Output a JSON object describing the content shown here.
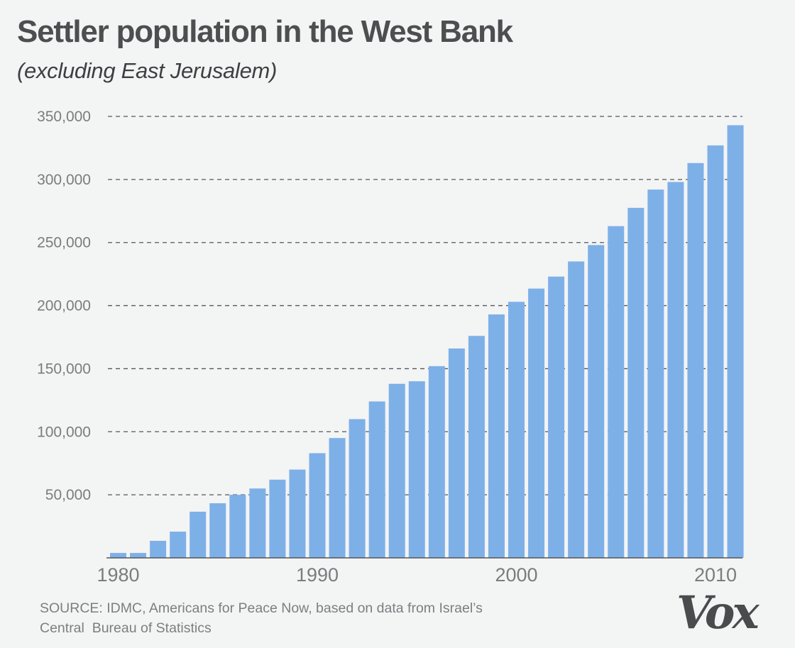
{
  "header": {
    "title": "Settler population in the West Bank",
    "subtitle": "(excluding East Jerusalem)"
  },
  "footer": {
    "source_line1": "SOURCE: IDMC, Americans for Peace Now, based on data from Israel’s",
    "source_line2": "Central  Bureau of Statistics",
    "logo_text": "Vox"
  },
  "colors": {
    "bar": "#7eb0e8",
    "grid": "#55565a",
    "background": "#f3f4f4"
  },
  "chart_data": {
    "type": "bar",
    "title": "Settler population in the West Bank",
    "subtitle": "(excluding East Jerusalem)",
    "xlabel": "",
    "ylabel": "",
    "categories": [
      1980,
      1981,
      1982,
      1983,
      1984,
      1985,
      1986,
      1987,
      1988,
      1989,
      1990,
      1991,
      1992,
      1993,
      1994,
      1995,
      1996,
      1997,
      1998,
      1999,
      2000,
      2001,
      2002,
      2003,
      2004,
      2005,
      2006,
      2007,
      2008,
      2009,
      2010,
      2011
    ],
    "values": [
      3900,
      3900,
      13500,
      20800,
      36600,
      43300,
      50000,
      55000,
      62000,
      70000,
      83000,
      95000,
      110000,
      124000,
      138000,
      140000,
      152000,
      166000,
      176000,
      193000,
      203000,
      213500,
      223000,
      235000,
      248000,
      263000,
      277500,
      292000,
      298000,
      313000,
      327000,
      343000
    ],
    "ylim": [
      0,
      350000
    ],
    "yticks": [
      50000,
      100000,
      150000,
      200000,
      250000,
      300000,
      350000
    ],
    "ytick_labels": [
      "50,000",
      "100,000",
      "150,000",
      "200,000",
      "250,000",
      "300,000",
      "350,000"
    ],
    "xtick_labels": [
      "1980",
      "1990",
      "2000",
      "2010"
    ],
    "grid": "horizontal dashed",
    "legend": "none",
    "source": "SOURCE: IDMC, Americans for Peace Now, based on data from Israel’s Central Bureau of Statistics"
  }
}
